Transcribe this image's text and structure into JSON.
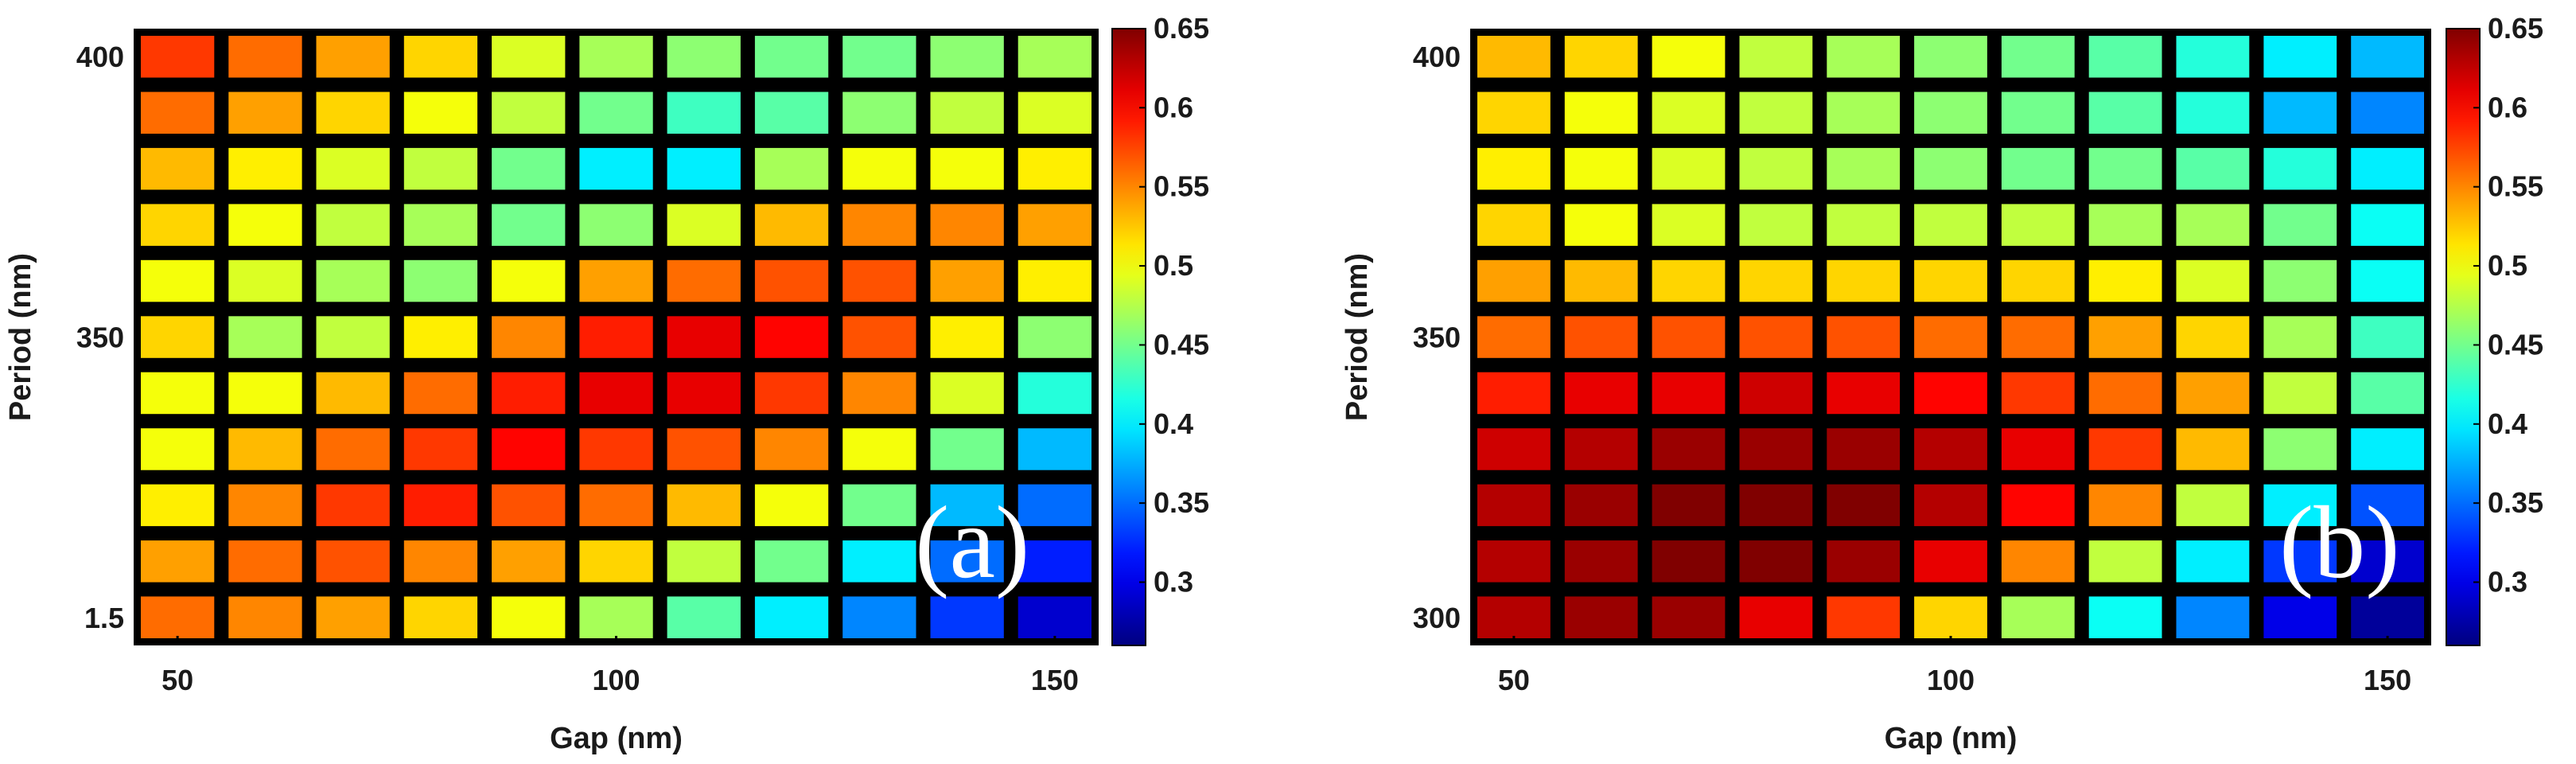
{
  "chart_data": [
    {
      "type": "heatmap",
      "panel_label": "(a)",
      "xlabel": "Gap (nm)",
      "ylabel": "Period (nm)",
      "x": [
        50,
        60,
        70,
        80,
        90,
        100,
        110,
        120,
        130,
        140,
        150
      ],
      "xticks": [
        "50",
        "100",
        "150"
      ],
      "yticks": [
        "400",
        "350",
        "1.5"
      ],
      "colorbar": {
        "range": [
          0.26,
          0.65
        ],
        "ticks": [
          "0.65",
          "0.6",
          "0.55",
          "0.5",
          "0.45",
          "0.4",
          "0.35",
          "0.3"
        ]
      },
      "values": [
        [
          0.58,
          0.56,
          0.54,
          0.52,
          0.49,
          0.47,
          0.46,
          0.45,
          0.45,
          0.46,
          0.47
        ],
        [
          0.56,
          0.54,
          0.52,
          0.5,
          0.48,
          0.45,
          0.43,
          0.44,
          0.46,
          0.48,
          0.49
        ],
        [
          0.53,
          0.51,
          0.49,
          0.48,
          0.45,
          0.4,
          0.4,
          0.47,
          0.5,
          0.5,
          0.51
        ],
        [
          0.52,
          0.5,
          0.48,
          0.47,
          0.45,
          0.46,
          0.49,
          0.53,
          0.55,
          0.55,
          0.54
        ],
        [
          0.5,
          0.49,
          0.47,
          0.46,
          0.5,
          0.54,
          0.56,
          0.57,
          0.57,
          0.54,
          0.51
        ],
        [
          0.52,
          0.47,
          0.48,
          0.51,
          0.55,
          0.59,
          0.61,
          0.6,
          0.57,
          0.51,
          0.46
        ],
        [
          0.5,
          0.5,
          0.53,
          0.56,
          0.59,
          0.61,
          0.61,
          0.58,
          0.55,
          0.49,
          0.42
        ],
        [
          0.5,
          0.53,
          0.56,
          0.58,
          0.6,
          0.58,
          0.57,
          0.55,
          0.5,
          0.45,
          0.38
        ],
        [
          0.51,
          0.55,
          0.58,
          0.59,
          0.57,
          0.56,
          0.53,
          0.5,
          0.45,
          0.38,
          0.35
        ],
        [
          0.54,
          0.56,
          0.57,
          0.55,
          0.54,
          0.52,
          0.48,
          0.45,
          0.4,
          0.35,
          0.32
        ],
        [
          0.56,
          0.55,
          0.54,
          0.52,
          0.5,
          0.47,
          0.44,
          0.4,
          0.36,
          0.33,
          0.29
        ]
      ]
    },
    {
      "type": "heatmap",
      "panel_label": "(b)",
      "xlabel": "Gap (nm)",
      "ylabel": "Period (nm)",
      "x": [
        50,
        60,
        70,
        80,
        90,
        100,
        110,
        120,
        130,
        140,
        150
      ],
      "xticks": [
        "50",
        "100",
        "150"
      ],
      "yticks": [
        "400",
        "350",
        "300"
      ],
      "colorbar": {
        "range": [
          0.26,
          0.65
        ],
        "ticks": [
          "0.65",
          "0.6",
          "0.55",
          "0.5",
          "0.45",
          "0.4",
          "0.35",
          "0.3"
        ]
      },
      "values": [
        [
          0.53,
          0.52,
          0.5,
          0.48,
          0.47,
          0.46,
          0.45,
          0.44,
          0.42,
          0.4,
          0.38
        ],
        [
          0.52,
          0.5,
          0.49,
          0.48,
          0.47,
          0.46,
          0.45,
          0.44,
          0.42,
          0.38,
          0.36
        ],
        [
          0.51,
          0.5,
          0.49,
          0.48,
          0.47,
          0.46,
          0.45,
          0.45,
          0.44,
          0.42,
          0.4
        ],
        [
          0.52,
          0.5,
          0.49,
          0.48,
          0.48,
          0.48,
          0.48,
          0.47,
          0.47,
          0.45,
          0.41
        ],
        [
          0.54,
          0.53,
          0.52,
          0.52,
          0.52,
          0.52,
          0.52,
          0.51,
          0.49,
          0.46,
          0.41
        ],
        [
          0.56,
          0.57,
          0.57,
          0.57,
          0.57,
          0.56,
          0.56,
          0.54,
          0.52,
          0.47,
          0.43
        ],
        [
          0.59,
          0.61,
          0.61,
          0.62,
          0.61,
          0.6,
          0.58,
          0.56,
          0.54,
          0.48,
          0.44
        ],
        [
          0.62,
          0.63,
          0.64,
          0.64,
          0.64,
          0.63,
          0.61,
          0.58,
          0.53,
          0.46,
          0.4
        ],
        [
          0.63,
          0.64,
          0.65,
          0.65,
          0.65,
          0.63,
          0.6,
          0.55,
          0.48,
          0.4,
          0.34
        ],
        [
          0.63,
          0.64,
          0.65,
          0.66,
          0.64,
          0.61,
          0.55,
          0.48,
          0.4,
          0.33,
          0.29
        ],
        [
          0.63,
          0.64,
          0.64,
          0.61,
          0.58,
          0.52,
          0.47,
          0.41,
          0.36,
          0.3,
          0.27
        ]
      ]
    }
  ]
}
